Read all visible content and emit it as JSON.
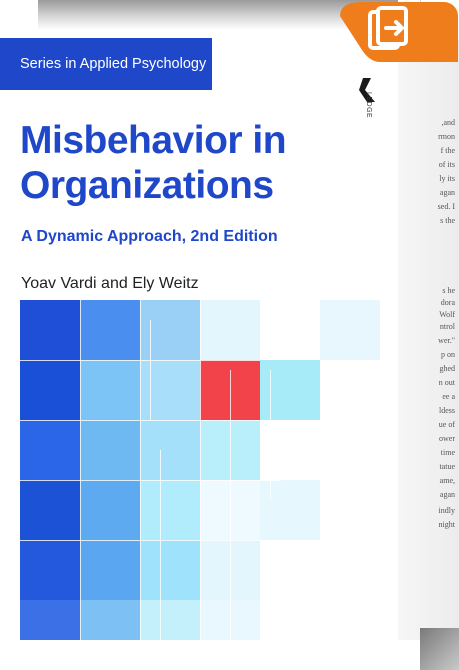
{
  "cover": {
    "series_label": "Series in Applied Psychology",
    "title": "Misbehavior in Organizations",
    "subtitle": "A Dynamic Approach, 2nd Edition",
    "authors": "Yoav Vardi and Ely Weitz",
    "publisher_logo_text": "LEDGE"
  },
  "spine_fragments": [
    ",and",
    "rmon",
    "f the",
    "of its",
    "ly its",
    "agan",
    "sed. I",
    "s the",
    "s he",
    "dora",
    "Wolf",
    "ntrol",
    "wer.\"",
    "p on",
    "ghed",
    "n out",
    "ee a",
    "ldess",
    "ue of",
    "ower",
    "time",
    "tatue",
    "ame,",
    "agan",
    "indly",
    "night"
  ],
  "colors": {
    "accent_blue": "#1f47c9",
    "accent_red": "#f2434b",
    "icon_orange": "#f07d1c"
  },
  "icons": {
    "reader": "document-arrow-icon",
    "logo": "publisher-logo-icon"
  }
}
